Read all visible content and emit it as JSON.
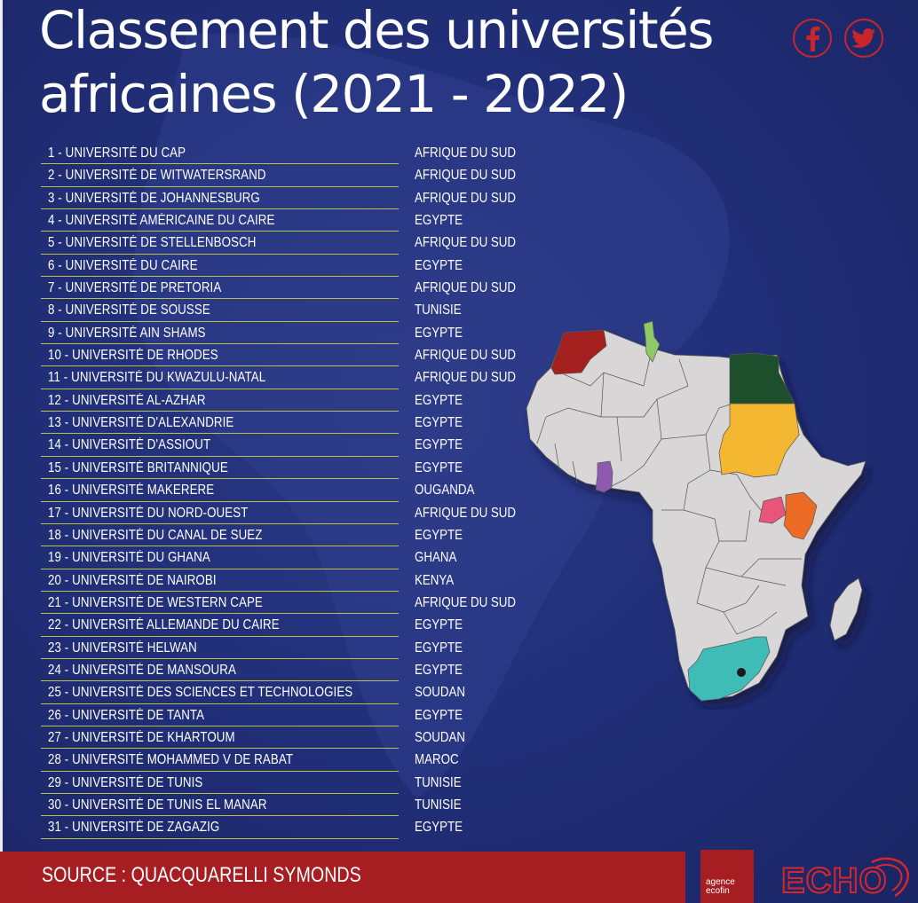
{
  "title": "Classement des universités africaines (2021 - 2022)",
  "social": {
    "facebook_icon": "facebook-icon",
    "twitter_icon": "twitter-icon"
  },
  "universities": [
    {
      "name": "1 - UNIVERSITÉ DU CAP",
      "country": "AFRIQUE DU SUD"
    },
    {
      "name": "2 - UNIVERSITÉ DE WITWATERSRAND",
      "country": "AFRIQUE DU SUD"
    },
    {
      "name": "3 - UNIVERSITÉ DE JOHANNESBURG",
      "country": "AFRIQUE DU SUD"
    },
    {
      "name": "4 - UNIVERSITÉ AMÉRICAINE DU CAIRE",
      "country": "EGYPTE"
    },
    {
      "name": "5 - UNIVERSITÉ DE STELLENBOSCH",
      "country": "AFRIQUE DU SUD"
    },
    {
      "name": "6 - UNIVERSITÉ DU CAIRE",
      "country": "EGYPTE"
    },
    {
      "name": "7 - UNIVERSITÉ DE PRETORIA",
      "country": "AFRIQUE DU SUD"
    },
    {
      "name": "8 - UNIVERSITÉ DE SOUSSE",
      "country": "TUNISIE"
    },
    {
      "name": "9 - UNIVERSITÉ AIN SHAMS",
      "country": "EGYPTE"
    },
    {
      "name": "10 - UNIVERSITÉ DE RHODES",
      "country": "AFRIQUE DU SUD"
    },
    {
      "name": "11 - UNIVERSITÉ DU KWAZULU-NATAL",
      "country": "AFRIQUE DU SUD"
    },
    {
      "name": "12 - UNIVERSITÉ AL-AZHAR",
      "country": "EGYPTE"
    },
    {
      "name": "13 - UNIVERSITÉ D'ALEXANDRIE",
      "country": "EGYPTE"
    },
    {
      "name": "14 - UNIVERSITÉ D'ASSIOUT",
      "country": "EGYPTE"
    },
    {
      "name": "15 - UNIVERSITÉ BRITANNIQUE",
      "country": "EGYPTE"
    },
    {
      "name": "16 - UNIVERSITÉ MAKERERE",
      "country": "OUGANDA"
    },
    {
      "name": "17 - UNIVERSITÉ DU NORD-OUEST",
      "country": "AFRIQUE DU SUD"
    },
    {
      "name": "18 - UNIVERSITÉ DU CANAL DE SUEZ",
      "country": "EGYPTE"
    },
    {
      "name": "19 - UNIVERSITÉ DU GHANA",
      "country": "GHANA"
    },
    {
      "name": "20 - UNIVERSITÉ DE NAIROBI",
      "country": "KENYA"
    },
    {
      "name": "21 - UNIVERSITÉ DE WESTERN CAPE",
      "country": "AFRIQUE DU SUD"
    },
    {
      "name": "22 - UNIVERSITÉ ALLEMANDE DU CAIRE",
      "country": "EGYPTE"
    },
    {
      "name": "23 - UNIVERSITÉ HELWAN",
      "country": "EGYPTE"
    },
    {
      "name": "24 - UNIVERSITÉ DE MANSOURA",
      "country": "EGYPTE"
    },
    {
      "name": "25 - UNIVERSITÉ DES SCIENCES ET TECHNOLOGIES",
      "country": "SOUDAN"
    },
    {
      "name": "26 - UNIVERSITÉ DE TANTA",
      "country": "EGYPTE"
    },
    {
      "name": "27 - UNIVERSITÉ DE KHARTOUM",
      "country": "SOUDAN"
    },
    {
      "name": "28 - UNIVERSITÉ MOHAMMED V DE RABAT",
      "country": "MAROC"
    },
    {
      "name": "29 - UNIVERSITÉ DE TUNIS",
      "country": "TUNISIE"
    },
    {
      "name": "30 - UNIVERSITÉ DE TUNIS EL MANAR",
      "country": "TUNISIE"
    },
    {
      "name": "31 - UNIVERSITÉ DE ZAGAZIG",
      "country": "EGYPTE"
    }
  ],
  "map_colors": {
    "base": "#d8d6d6",
    "morocco": "#a3201f",
    "tunisia": "#8fc96a",
    "egypt": "#1d4f2c",
    "sudan": "#f3b731",
    "ghana": "#8e5ab0",
    "uganda": "#e8547a",
    "kenya": "#ec6b25",
    "south_africa": "#3fbcb5"
  },
  "footer": {
    "source": "SOURCE : QUACQUARELLI SYMONDS",
    "logo1_line1": "agence",
    "logo1_line2": "ecofin",
    "logo2": "ECHO"
  },
  "colors": {
    "background": "#22307a",
    "accent_red": "#a61e22",
    "rule": "#b8c24a"
  }
}
